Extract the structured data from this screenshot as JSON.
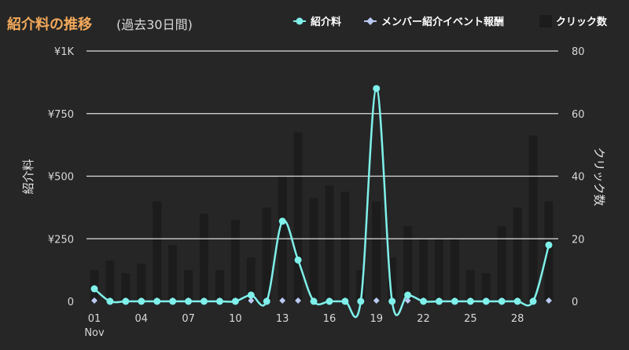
{
  "header": {
    "title": "紹介料の推移",
    "subtitle": "(過去30日間)"
  },
  "legend": {
    "items": [
      {
        "label": "紹介料",
        "icon": "circle-marker-icon",
        "color": "#7ff0ea"
      },
      {
        "label": "メンバー紹介イベント報酬",
        "icon": "diamond-marker-icon",
        "color": "#b9c9f2"
      },
      {
        "label": "クリック数",
        "icon": "bar-swatch-icon",
        "color": "#1c1c1c"
      }
    ]
  },
  "colors": {
    "background": "#262626",
    "title": "#f3a95b",
    "fee_line": "#7ff0ea",
    "event_reward": "#b9c9f2",
    "clicks_bar": "#1c1c1c",
    "grid": "#ffffff"
  },
  "chart_data": {
    "type": "bar+line",
    "title": "紹介料の推移",
    "subtitle": "(過去30日間)",
    "x": [
      1,
      2,
      3,
      4,
      5,
      6,
      7,
      8,
      9,
      10,
      11,
      12,
      13,
      14,
      15,
      16,
      17,
      18,
      19,
      20,
      21,
      22,
      23,
      24,
      25,
      26,
      27,
      28,
      29,
      30
    ],
    "x_tick_labels": [
      "01",
      "04",
      "07",
      "10",
      "13",
      "16",
      "19",
      "22",
      "25",
      "28"
    ],
    "x_tick_positions": [
      1,
      4,
      7,
      10,
      13,
      16,
      19,
      22,
      25,
      28
    ],
    "x_sublabel": "Nov",
    "y_left": {
      "label": "紹介料",
      "min": 0,
      "max": 1000,
      "ticks": [
        0,
        250,
        500,
        750,
        1000
      ],
      "tick_labels": [
        "0",
        "¥250",
        "¥500",
        "¥750",
        "¥1K"
      ]
    },
    "y_right": {
      "label": "クリック数",
      "min": 0,
      "max": 80,
      "ticks": [
        0,
        20,
        40,
        60,
        80
      ],
      "tick_labels": [
        "0",
        "20",
        "40",
        "60",
        "80"
      ]
    },
    "grid": true,
    "legend_position": "top-right",
    "series": [
      {
        "name": "紹介料",
        "type": "line",
        "axis": "left",
        "values": [
          50,
          0,
          0,
          0,
          0,
          0,
          0,
          0,
          0,
          0,
          25,
          0,
          320,
          165,
          0,
          0,
          0,
          0,
          850,
          0,
          25,
          0,
          0,
          0,
          0,
          0,
          0,
          0,
          0,
          225
        ]
      },
      {
        "name": "メンバー紹介イベント報酬",
        "type": "scatter",
        "axis": "left",
        "values": [
          0,
          0,
          0,
          0,
          0,
          0,
          0,
          0,
          0,
          0,
          0,
          0,
          0,
          0,
          0,
          0,
          0,
          0,
          0,
          0,
          0,
          0,
          0,
          0,
          0,
          0,
          0,
          0,
          0,
          0
        ]
      },
      {
        "name": "クリック数",
        "type": "bar",
        "axis": "right",
        "values": [
          10,
          13,
          9,
          12,
          32,
          18,
          10,
          28,
          10,
          26,
          14,
          30,
          40,
          54,
          33,
          37,
          35,
          10,
          32,
          14,
          24,
          20,
          20,
          20,
          10,
          9,
          24,
          30,
          53,
          32
        ]
      }
    ]
  }
}
